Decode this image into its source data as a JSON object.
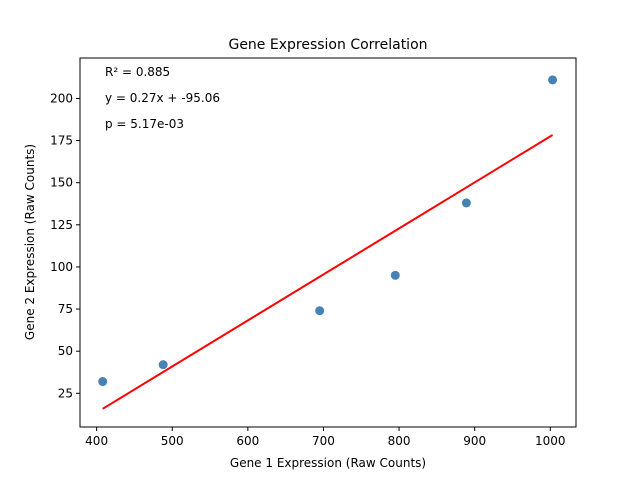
{
  "chart_data": {
    "type": "scatter",
    "title": "Gene Expression Correlation",
    "xlabel": "Gene 1 Expression (Raw Counts)",
    "ylabel": "Gene 2 Expression (Raw Counts)",
    "xlim": [
      378,
      1034
    ],
    "ylim": [
      5,
      224
    ],
    "xticks": [
      400,
      500,
      600,
      700,
      800,
      900,
      1000
    ],
    "yticks": [
      25,
      50,
      75,
      100,
      125,
      150,
      175,
      200
    ],
    "grid": false,
    "series": [
      {
        "kind": "scatter",
        "color": "#4682b4",
        "points": [
          {
            "x": 408,
            "y": 32
          },
          {
            "x": 488,
            "y": 42
          },
          {
            "x": 695,
            "y": 74
          },
          {
            "x": 795,
            "y": 95
          },
          {
            "x": 889,
            "y": 138
          },
          {
            "x": 1003,
            "y": 211
          }
        ]
      },
      {
        "kind": "line",
        "color": "#ff0000",
        "points": [
          {
            "x": 408,
            "y": 15.8
          },
          {
            "x": 1003,
            "y": 178.3
          }
        ]
      }
    ],
    "annotations": [
      "R² = 0.885",
      "y = 0.27x + -95.06",
      "p = 5.17e-03"
    ]
  }
}
